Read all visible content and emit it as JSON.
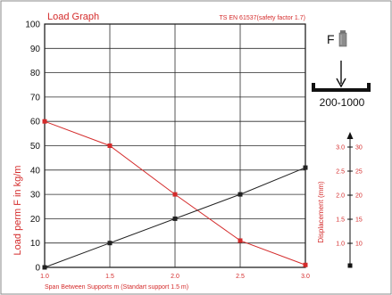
{
  "chart_data": {
    "type": "line",
    "title": "Load Graph",
    "subtitle": "TS EN 61537(safety factor 1.7)",
    "ylabel": "Load perm F in kg/m",
    "xlabel": "Span Between Supports m (Standart support 1.5 m)",
    "x_ticks": [
      "1.0",
      "1.5",
      "2.0",
      "2.5",
      "3.0"
    ],
    "y_ticks": [
      "0",
      "10",
      "20",
      "30",
      "40",
      "50",
      "60",
      "70",
      "80",
      "90",
      "100"
    ],
    "xlim": [
      1.0,
      3.0
    ],
    "ylim": [
      0,
      100
    ],
    "grid": true,
    "series": [
      {
        "name": "Load",
        "color": "#d42b2b",
        "x": [
          1.0,
          1.5,
          2.0,
          2.5,
          3.0
        ],
        "y": [
          60,
          50,
          30,
          11,
          1
        ]
      },
      {
        "name": "Displacement",
        "color": "#222222",
        "x": [
          1.0,
          1.5,
          2.0,
          2.5,
          3.0
        ],
        "y": [
          0,
          10,
          20,
          30,
          41
        ]
      }
    ],
    "secondary_axis": {
      "label": "Displacement (mm)",
      "mm_ticks": [
        "10",
        "15",
        "20",
        "25",
        "30"
      ],
      "values": [
        "1.0",
        "1.5",
        "2.0",
        "2.5",
        "3.0"
      ]
    }
  },
  "diagram": {
    "force_label": "F",
    "range_label": "200-1000"
  },
  "colors": {
    "red": "#d42b2b",
    "black": "#222222",
    "grid": "#222222"
  }
}
